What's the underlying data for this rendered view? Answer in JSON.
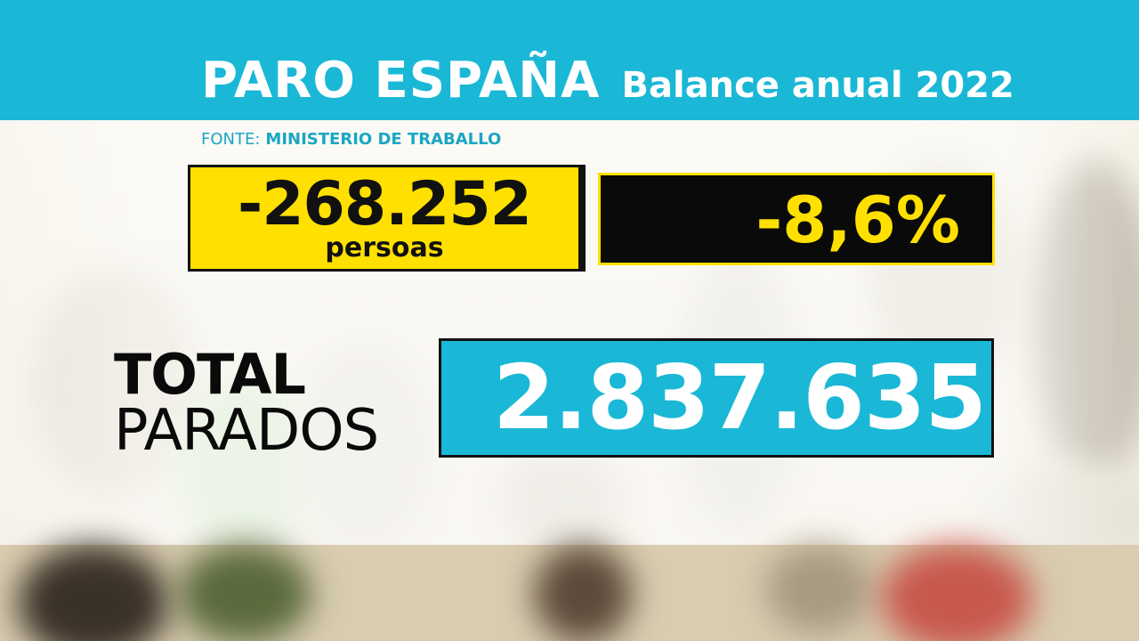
{
  "header": {
    "title": "PARO ESPAÑA",
    "subtitle": "Balance anual 2022",
    "background_color": "#1ab8d6"
  },
  "source": {
    "label": "FONTE:",
    "name": "MINISTERIO DE TRABALLO"
  },
  "annual_change": {
    "value": "-268.252",
    "unit": "persoas",
    "color": "#ffe000"
  },
  "percent_change": {
    "value": "-8,6%",
    "color": "#ffe000"
  },
  "total": {
    "label_line1": "TOTAL",
    "label_line2": "PARADOS",
    "value": "2.837.635",
    "color": "#1ab8d6"
  }
}
